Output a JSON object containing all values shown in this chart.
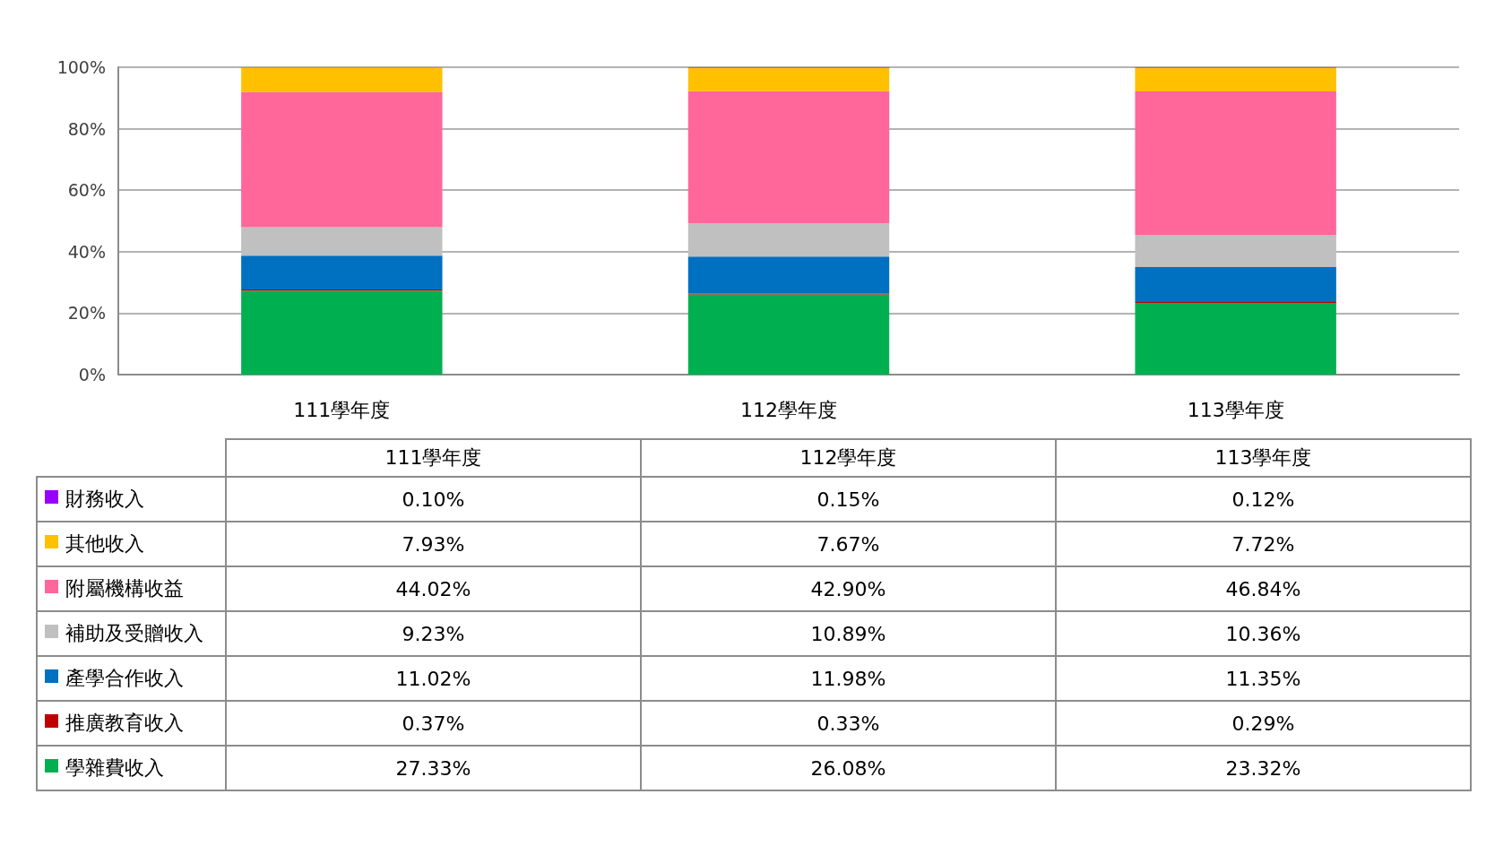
{
  "chart_data": {
    "type": "bar",
    "stacked": true,
    "categories": [
      "111學年度",
      "112學年度",
      "113學年度"
    ],
    "ylim": [
      0,
      100
    ],
    "yticks": [
      {
        "value": 0,
        "label": "0%"
      },
      {
        "value": 20,
        "label": "20%"
      },
      {
        "value": 40,
        "label": "40%"
      },
      {
        "value": 60,
        "label": "60%"
      },
      {
        "value": 80,
        "label": "80%"
      },
      {
        "value": 100,
        "label": "100%"
      }
    ],
    "grid": "y",
    "legend": "bottom",
    "series": [
      {
        "name": "學雜費收入",
        "color": "#00b050",
        "values": [
          27.33,
          26.08,
          23.32
        ],
        "value_labels": [
          "27.33%",
          "26.08%",
          "23.32%"
        ]
      },
      {
        "name": "推廣教育收入",
        "color": "#c00000",
        "values": [
          0.37,
          0.33,
          0.29
        ],
        "value_labels": [
          "0.37%",
          "0.33%",
          "0.29%"
        ]
      },
      {
        "name": "產學合作收入",
        "color": "#0070c0",
        "values": [
          11.02,
          11.98,
          11.35
        ],
        "value_labels": [
          "11.02%",
          "11.98%",
          "11.35%"
        ]
      },
      {
        "name": "補助及受贈收入",
        "color": "#c0c0c0",
        "values": [
          9.23,
          10.89,
          10.36
        ],
        "value_labels": [
          "9.23%",
          "10.89%",
          "10.36%"
        ]
      },
      {
        "name": "附屬機構收益",
        "color": "#ff6699",
        "values": [
          44.02,
          42.9,
          46.84
        ],
        "value_labels": [
          "44.02%",
          "42.90%",
          "46.84%"
        ]
      },
      {
        "name": "其他收入",
        "color": "#ffc000",
        "values": [
          7.93,
          7.67,
          7.72
        ],
        "value_labels": [
          "7.93%",
          "7.67%",
          "7.72%"
        ]
      },
      {
        "name": "財務收入",
        "color": "#9900ff",
        "values": [
          0.1,
          0.15,
          0.12
        ],
        "value_labels": [
          "0.10%",
          "0.15%",
          "0.12%"
        ]
      }
    ]
  }
}
